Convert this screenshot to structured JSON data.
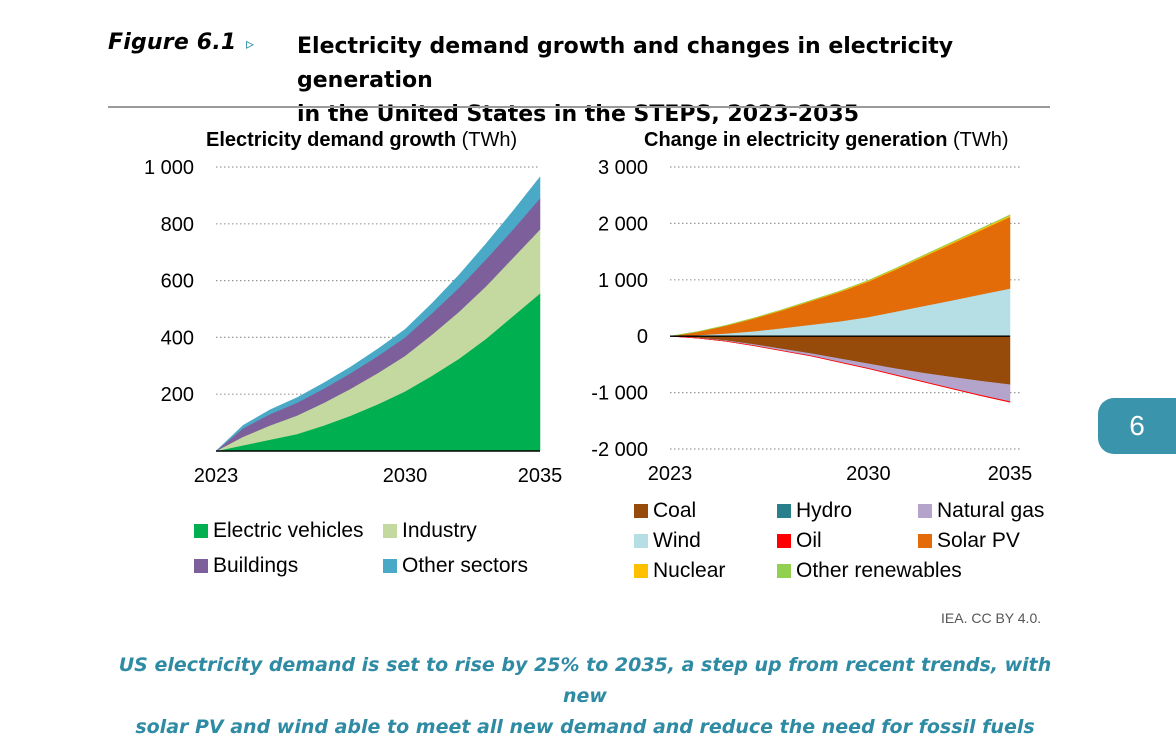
{
  "header": {
    "figure_label": "Figure 6.1",
    "arrow": "▹",
    "title_line1": "Electricity demand growth and changes in electricity generation",
    "title_line2": "in the United States in the STEPS, 2023-2035"
  },
  "chart_data": [
    {
      "type": "area",
      "stacked": true,
      "title_bold": "Electricity demand growth",
      "title_unit": "(TWh)",
      "x": [
        2023,
        2024,
        2025,
        2026,
        2027,
        2028,
        2029,
        2030,
        2031,
        2032,
        2033,
        2034,
        2035
      ],
      "x_ticks": [
        "2023",
        "2030",
        "2035"
      ],
      "ylim": [
        0,
        1000
      ],
      "y_ticks": [
        "200",
        "400",
        "600",
        "800",
        "1 000"
      ],
      "y_tick_values": [
        200,
        400,
        600,
        800,
        1000
      ],
      "series": [
        {
          "name": "Electric vehicles",
          "color": "#00b050",
          "values": [
            0,
            20,
            40,
            60,
            90,
            125,
            165,
            210,
            265,
            325,
            395,
            475,
            555
          ]
        },
        {
          "name": "Industry",
          "color": "#c4d9a0",
          "values": [
            0,
            30,
            50,
            65,
            80,
            95,
            110,
            125,
            145,
            165,
            185,
            205,
            225
          ]
        },
        {
          "name": "Buildings",
          "color": "#7c5f9b",
          "values": [
            0,
            30,
            40,
            45,
            50,
            55,
            60,
            65,
            75,
            85,
            95,
            100,
            110
          ]
        },
        {
          "name": "Other sectors",
          "color": "#49a9c6",
          "values": [
            0,
            10,
            15,
            18,
            20,
            22,
            25,
            28,
            35,
            45,
            55,
            65,
            75
          ]
        }
      ]
    },
    {
      "type": "area",
      "stacked": true,
      "title_bold": "Change in electricity generation",
      "title_unit": "(TWh)",
      "x": [
        2023,
        2024,
        2025,
        2026,
        2027,
        2028,
        2029,
        2030,
        2031,
        2032,
        2033,
        2034,
        2035
      ],
      "x_ticks": [
        "2023",
        "2030",
        "2035"
      ],
      "ylim": [
        -2000,
        3000
      ],
      "y_ticks": [
        "-2 000",
        "-1 000",
        "0",
        "1 000",
        "2 000",
        "3 000"
      ],
      "y_tick_values": [
        -2000,
        -1000,
        0,
        1000,
        2000,
        3000
      ],
      "series": [
        {
          "name": "Coal",
          "color": "#964b0a",
          "values": [
            0,
            -30,
            -80,
            -150,
            -230,
            -310,
            -400,
            -490,
            -580,
            -660,
            -730,
            -800,
            -860
          ]
        },
        {
          "name": "Hydro",
          "color": "#2a7f8c",
          "values": [
            0,
            0,
            0,
            0,
            5,
            5,
            5,
            10,
            10,
            10,
            10,
            15,
            15
          ]
        },
        {
          "name": "Natural gas",
          "color": "#b4a4cc",
          "values": [
            0,
            -5,
            -10,
            -20,
            -30,
            -40,
            -60,
            -80,
            -110,
            -150,
            -200,
            -250,
            -300
          ]
        },
        {
          "name": "Wind",
          "color": "#b5dee5",
          "values": [
            0,
            20,
            50,
            90,
            140,
            200,
            260,
            330,
            430,
            530,
            630,
            730,
            830
          ]
        },
        {
          "name": "Oil",
          "color": "#ff0000",
          "values": [
            0,
            -1,
            -2,
            -3,
            -4,
            -5,
            -6,
            -7,
            -8,
            -9,
            -10,
            -11,
            -12
          ]
        },
        {
          "name": "Solar PV",
          "color": "#e36c09",
          "values": [
            0,
            60,
            140,
            230,
            320,
            420,
            520,
            630,
            750,
            880,
            1010,
            1140,
            1270
          ]
        },
        {
          "name": "Nuclear",
          "color": "#ffc000",
          "values": [
            0,
            2,
            4,
            6,
            8,
            10,
            12,
            14,
            16,
            18,
            20,
            22,
            24
          ]
        },
        {
          "name": "Other renewables",
          "color": "#92d050",
          "values": [
            0,
            2,
            3,
            4,
            5,
            6,
            7,
            8,
            9,
            10,
            11,
            12,
            13
          ]
        }
      ]
    }
  ],
  "legend_left": [
    {
      "label": "Electric vehicles",
      "color": "#00b050"
    },
    {
      "label": "Industry",
      "color": "#c4d9a0"
    },
    {
      "label": "Buildings",
      "color": "#7c5f9b"
    },
    {
      "label": "Other sectors",
      "color": "#49a9c6"
    }
  ],
  "legend_right": [
    {
      "label": "Coal",
      "color": "#964b0a"
    },
    {
      "label": "Hydro",
      "color": "#2a7f8c"
    },
    {
      "label": "Natural gas",
      "color": "#b4a4cc"
    },
    {
      "label": "Wind",
      "color": "#b5dee5"
    },
    {
      "label": "Oil",
      "color": "#ff0000"
    },
    {
      "label": "Solar PV",
      "color": "#e36c09"
    },
    {
      "label": "Nuclear",
      "color": "#ffc000"
    },
    {
      "label": "Other renewables",
      "color": "#92d050"
    }
  ],
  "credit": "IEA. CC BY 4.0.",
  "caption_line1": "US electricity demand is set to rise by 25% to 2035, a step up from recent trends, with new",
  "caption_line2": "solar PV and wind able to meet all new demand and reduce the need for fossil fuels",
  "chapter_tab": "6"
}
